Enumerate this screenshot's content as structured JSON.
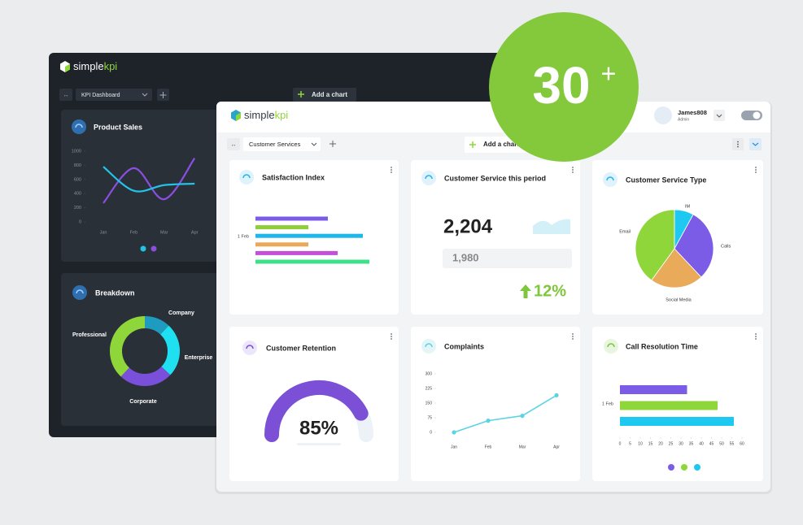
{
  "badge": {
    "number": "30",
    "sup": "+"
  },
  "back": {
    "logo": [
      "simple",
      "kpi"
    ],
    "dashboard": "KPI Dashboard",
    "add_chart": "Add a chart",
    "product_sales": {
      "type": "line",
      "title": "Product Sales",
      "categories": [
        "Jan",
        "Feb",
        "Mar",
        "Apr"
      ],
      "ylim": [
        0,
        1000
      ],
      "yticks": [
        0,
        200,
        400,
        600,
        800,
        1000
      ],
      "series": [
        {
          "color": "#8a4fe0",
          "values": [
            265,
            760,
            320,
            900
          ]
        },
        {
          "color": "#22c3e6",
          "values": [
            780,
            440,
            520,
            540
          ]
        }
      ]
    },
    "breakdown": {
      "type": "donut",
      "title": "Breakdown",
      "categories": [
        "Company",
        "Enterprise",
        "Corporate",
        "Professional"
      ],
      "values": [
        12,
        25,
        25,
        38
      ],
      "colors": [
        "#1e9bbf",
        "#1fe0f0",
        "#7a4fd9",
        "#8fd63a"
      ]
    }
  },
  "front": {
    "logo": [
      "simple",
      "kpi"
    ],
    "dashboard": "Customer Services",
    "add_chart": "Add a chart",
    "user": {
      "name": "James808",
      "role": "Admin"
    },
    "satisfaction": {
      "type": "hbar",
      "title": "Satisfaction Index",
      "category": "1 Feb",
      "series": [
        {
          "color": "#7b5ce6",
          "values": [
            89
          ]
        },
        {
          "color": "#8fce3b",
          "values": [
            65
          ]
        },
        {
          "color": "#1fb6ea",
          "values": [
            132
          ]
        },
        {
          "color": "#e8a95a",
          "values": [
            65
          ]
        },
        {
          "color": "#c44fd8",
          "values": [
            101
          ]
        },
        {
          "color": "#3fe08a",
          "values": [
            140
          ]
        }
      ]
    },
    "service_period": {
      "title": "Customer Service this period",
      "current": "2,204",
      "previous": "1,980",
      "change": "12%"
    },
    "service_type": {
      "type": "pie",
      "title": "Customer Service Type",
      "categories": [
        "IM",
        "Calls",
        "Social Media",
        "Email"
      ],
      "values": [
        8,
        30,
        22,
        40
      ],
      "colors": [
        "#1ec8f0",
        "#7b5ce6",
        "#e9aa5a",
        "#8fd63a"
      ]
    },
    "retention": {
      "type": "gauge",
      "title": "Customer Retention",
      "value": 85,
      "value_label": "85%",
      "ylim": [
        0,
        100
      ],
      "color": "#7b4fd6"
    },
    "complaints": {
      "type": "line",
      "title": "Complaints",
      "categories": [
        "Jan",
        "Feb",
        "Mar",
        "Apr"
      ],
      "values": [
        0,
        60,
        85,
        190
      ],
      "ylim": [
        0,
        300
      ],
      "yticks": [
        0,
        75,
        150,
        225,
        300
      ],
      "color": "#5cd3e3"
    },
    "call_resolution": {
      "type": "hbar",
      "title": "Call Resolution Time",
      "category": "1 Feb",
      "xlim": [
        0,
        60
      ],
      "xticks": [
        0,
        5,
        10,
        15,
        20,
        25,
        30,
        35,
        40,
        45,
        50,
        55,
        60
      ],
      "series": [
        {
          "color": "#7b5ce6",
          "values": [
            33
          ]
        },
        {
          "color": "#8fd63a",
          "values": [
            48
          ]
        },
        {
          "color": "#1ec8f0",
          "values": [
            56
          ]
        }
      ]
    }
  }
}
